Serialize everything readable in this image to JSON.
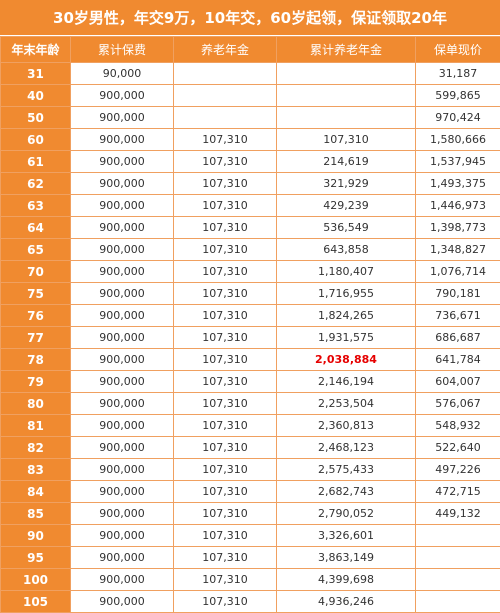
{
  "title": "30岁男性，年交9万，10年交，60岁起领，保证领取20年",
  "headers": [
    "年末年龄",
    "累计保费",
    "养老年金",
    "累计养老年金",
    "保单现价"
  ],
  "highlight_row": "78",
  "highlight_color": "#e60000",
  "accent_color": "#f08a30",
  "rows": [
    [
      "31",
      "90,000",
      "",
      "",
      "31,187"
    ],
    [
      "40",
      "900,000",
      "",
      "",
      "599,865"
    ],
    [
      "50",
      "900,000",
      "",
      "",
      "970,424"
    ],
    [
      "60",
      "900,000",
      "107,310",
      "107,310",
      "1,580,666"
    ],
    [
      "61",
      "900,000",
      "107,310",
      "214,619",
      "1,537,945"
    ],
    [
      "62",
      "900,000",
      "107,310",
      "321,929",
      "1,493,375"
    ],
    [
      "63",
      "900,000",
      "107,310",
      "429,239",
      "1,446,973"
    ],
    [
      "64",
      "900,000",
      "107,310",
      "536,549",
      "1,398,773"
    ],
    [
      "65",
      "900,000",
      "107,310",
      "643,858",
      "1,348,827"
    ],
    [
      "70",
      "900,000",
      "107,310",
      "1,180,407",
      "1,076,714"
    ],
    [
      "75",
      "900,000",
      "107,310",
      "1,716,955",
      "790,181"
    ],
    [
      "76",
      "900,000",
      "107,310",
      "1,824,265",
      "736,671"
    ],
    [
      "77",
      "900,000",
      "107,310",
      "1,931,575",
      "686,687"
    ],
    [
      "78",
      "900,000",
      "107,310",
      "2,038,884",
      "641,784"
    ],
    [
      "79",
      "900,000",
      "107,310",
      "2,146,194",
      "604,007"
    ],
    [
      "80",
      "900,000",
      "107,310",
      "2,253,504",
      "576,067"
    ],
    [
      "81",
      "900,000",
      "107,310",
      "2,360,813",
      "548,932"
    ],
    [
      "82",
      "900,000",
      "107,310",
      "2,468,123",
      "522,640"
    ],
    [
      "83",
      "900,000",
      "107,310",
      "2,575,433",
      "497,226"
    ],
    [
      "84",
      "900,000",
      "107,310",
      "2,682,743",
      "472,715"
    ],
    [
      "85",
      "900,000",
      "107,310",
      "2,790,052",
      "449,132"
    ],
    [
      "90",
      "900,000",
      "107,310",
      "3,326,601",
      ""
    ],
    [
      "95",
      "900,000",
      "107,310",
      "3,863,149",
      ""
    ],
    [
      "100",
      "900,000",
      "107,310",
      "4,399,698",
      ""
    ],
    [
      "105",
      "900,000",
      "107,310",
      "4,936,246",
      ""
    ]
  ]
}
